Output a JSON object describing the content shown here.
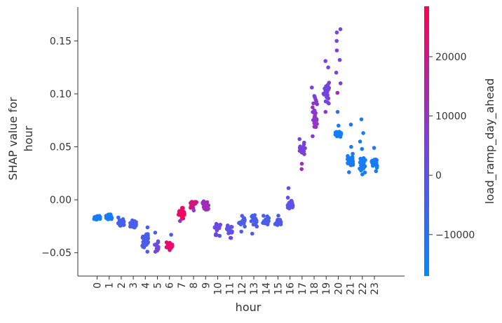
{
  "chart_data": {
    "type": "scatter",
    "xlabel": "hour",
    "ylabel_lines": [
      "SHAP value for",
      "hour"
    ],
    "x_tick_labels": [
      "0",
      "1",
      "2",
      "3",
      "4",
      "5",
      "6",
      "7",
      "8",
      "9",
      "10",
      "11",
      "12",
      "13",
      "14",
      "15",
      "16",
      "17",
      "18",
      "19",
      "20",
      "21",
      "22",
      "23"
    ],
    "ylim": [
      -0.072,
      0.182
    ],
    "xlim": [
      -1.6,
      25.5
    ],
    "y_ticks": [
      -0.05,
      0.0,
      0.05,
      0.1,
      0.15
    ],
    "y_tick_labels": [
      "−0.05",
      "0.00",
      "0.05",
      "0.10",
      "0.15"
    ],
    "colorbar": {
      "label": "load_ramp_day_ahead",
      "range": [
        -17000,
        28500
      ],
      "ticks": [
        -10000,
        0,
        10000,
        20000
      ],
      "tick_labels": [
        "−10000",
        "0",
        "10000",
        "20000"
      ],
      "colors": [
        "#008afb",
        "#7b40dd",
        "#ff0052"
      ]
    },
    "groups": [
      {
        "hour": 0,
        "y_center": -0.017,
        "y_spread": 0.002,
        "color_value": -13000,
        "n": 30
      },
      {
        "hour": 1,
        "y_center": -0.016,
        "y_spread": 0.002,
        "color_value": -13000,
        "n": 28
      },
      {
        "hour": 2,
        "y_center": -0.022,
        "y_spread": 0.004,
        "color_value": -4000,
        "n": 25
      },
      {
        "hour": 3,
        "y_center": -0.023,
        "y_spread": 0.004,
        "color_value": -3500,
        "n": 25
      },
      {
        "hour": 4,
        "y_center": -0.038,
        "y_spread": 0.006,
        "color_value": -3000,
        "n": 22
      },
      {
        "hour": 5,
        "y_center": -0.044,
        "y_spread": 0.004,
        "color_value": 3000,
        "n": 12
      },
      {
        "hour": 6,
        "y_center": -0.043,
        "y_spread": 0.003,
        "color_value": 24000,
        "n": 28
      },
      {
        "hour": 7,
        "y_center": -0.012,
        "y_spread": 0.004,
        "color_value": 25000,
        "n": 30
      },
      {
        "hour": 8,
        "y_center": -0.004,
        "y_spread": 0.003,
        "color_value": 21000,
        "n": 22
      },
      {
        "hour": 9,
        "y_center": -0.006,
        "y_spread": 0.004,
        "color_value": 12000,
        "n": 28
      },
      {
        "hour": 10,
        "y_center": -0.027,
        "y_spread": 0.007,
        "color_value": 3000,
        "n": 14
      },
      {
        "hour": 11,
        "y_center": -0.029,
        "y_spread": 0.005,
        "color_value": 1000,
        "n": 16
      },
      {
        "hour": 12,
        "y_center": -0.02,
        "y_spread": 0.005,
        "color_value": -3000,
        "n": 18
      },
      {
        "hour": 13,
        "y_center": -0.02,
        "y_spread": 0.006,
        "color_value": -3000,
        "n": 18
      },
      {
        "hour": 14,
        "y_center": -0.02,
        "y_spread": 0.004,
        "color_value": -3000,
        "n": 14
      },
      {
        "hour": 15,
        "y_center": -0.022,
        "y_spread": 0.003,
        "color_value": -3000,
        "n": 20
      },
      {
        "hour": 16,
        "y_center": -0.005,
        "y_spread": 0.004,
        "color_value": 0,
        "n": 14
      },
      {
        "hour": 17,
        "y_center": 0.047,
        "y_spread": 0.008,
        "color_value": 5000,
        "n": 16
      },
      {
        "hour": 18,
        "y_center": 0.08,
        "y_spread": 0.012,
        "color_value": 9000,
        "n": 24
      },
      {
        "hour": 19,
        "y_center": 0.102,
        "y_spread": 0.012,
        "color_value": 5000,
        "n": 22
      },
      {
        "hour": 20,
        "y_center": 0.062,
        "y_spread": 0.002,
        "color_value": -13000,
        "n": 26
      },
      {
        "hour": 21,
        "y_center": 0.038,
        "y_spread": 0.005,
        "color_value": -13000,
        "n": 24
      },
      {
        "hour": 22,
        "y_center": 0.033,
        "y_spread": 0.005,
        "color_value": -13000,
        "n": 26
      },
      {
        "hour": 23,
        "y_center": 0.035,
        "y_spread": 0.004,
        "color_value": -13000,
        "n": 26
      }
    ],
    "extra_points": [
      {
        "x": 16,
        "y": 0.011,
        "c": 2000
      },
      {
        "x": 16,
        "y": 0.002,
        "c": 0
      },
      {
        "x": 17,
        "y": 0.029,
        "c": 12000
      },
      {
        "x": 17,
        "y": 0.034,
        "c": 12000
      },
      {
        "x": 17,
        "y": 0.054,
        "c": 5000
      },
      {
        "x": 18,
        "y": 0.106,
        "c": 6000
      },
      {
        "x": 18,
        "y": 0.098,
        "c": 5000
      },
      {
        "x": 18,
        "y": 0.06,
        "c": 8000
      },
      {
        "x": 19,
        "y": 0.131,
        "c": 5000
      },
      {
        "x": 19,
        "y": 0.125,
        "c": 5000
      },
      {
        "x": 19,
        "y": 0.083,
        "c": 8000
      },
      {
        "x": 20,
        "y": 0.161,
        "c": 5000
      },
      {
        "x": 20,
        "y": 0.158,
        "c": 5000
      },
      {
        "x": 20,
        "y": 0.15,
        "c": 5000
      },
      {
        "x": 20,
        "y": 0.141,
        "c": 8000
      },
      {
        "x": 20,
        "y": 0.132,
        "c": 5000
      },
      {
        "x": 20,
        "y": 0.12,
        "c": 5000
      },
      {
        "x": 20,
        "y": 0.11,
        "c": 8000
      },
      {
        "x": 20,
        "y": 0.101,
        "c": 12000
      },
      {
        "x": 20,
        "y": 0.083,
        "c": -10000
      },
      {
        "x": 20,
        "y": 0.07,
        "c": -12000
      },
      {
        "x": 21,
        "y": 0.071,
        "c": -10000
      },
      {
        "x": 21,
        "y": 0.05,
        "c": -12000
      },
      {
        "x": 21,
        "y": 0.026,
        "c": -12000
      },
      {
        "x": 22,
        "y": 0.076,
        "c": -12000
      },
      {
        "x": 22,
        "y": 0.063,
        "c": -12000
      },
      {
        "x": 22,
        "y": 0.055,
        "c": -13000
      },
      {
        "x": 22,
        "y": 0.048,
        "c": -12000
      },
      {
        "x": 22,
        "y": 0.024,
        "c": -13000
      },
      {
        "x": 23,
        "y": 0.049,
        "c": -12000
      },
      {
        "x": 23,
        "y": 0.027,
        "c": -13000
      },
      {
        "x": 4,
        "y": -0.026,
        "c": -3000
      },
      {
        "x": 4,
        "y": -0.049,
        "c": -3000
      },
      {
        "x": 5,
        "y": -0.031,
        "c": -2000
      },
      {
        "x": 5,
        "y": -0.049,
        "c": 5000
      },
      {
        "x": 6,
        "y": -0.033,
        "c": -3000
      },
      {
        "x": 7,
        "y": -0.02,
        "c": 10000
      },
      {
        "x": 8,
        "y": -0.01,
        "c": 6000
      },
      {
        "x": 10,
        "y": -0.034,
        "c": -2000
      },
      {
        "x": 11,
        "y": -0.036,
        "c": 5000
      },
      {
        "x": 12,
        "y": -0.03,
        "c": -3000
      },
      {
        "x": 13,
        "y": -0.032,
        "c": -3000
      },
      {
        "x": 15,
        "y": -0.015,
        "c": -3000
      }
    ]
  }
}
